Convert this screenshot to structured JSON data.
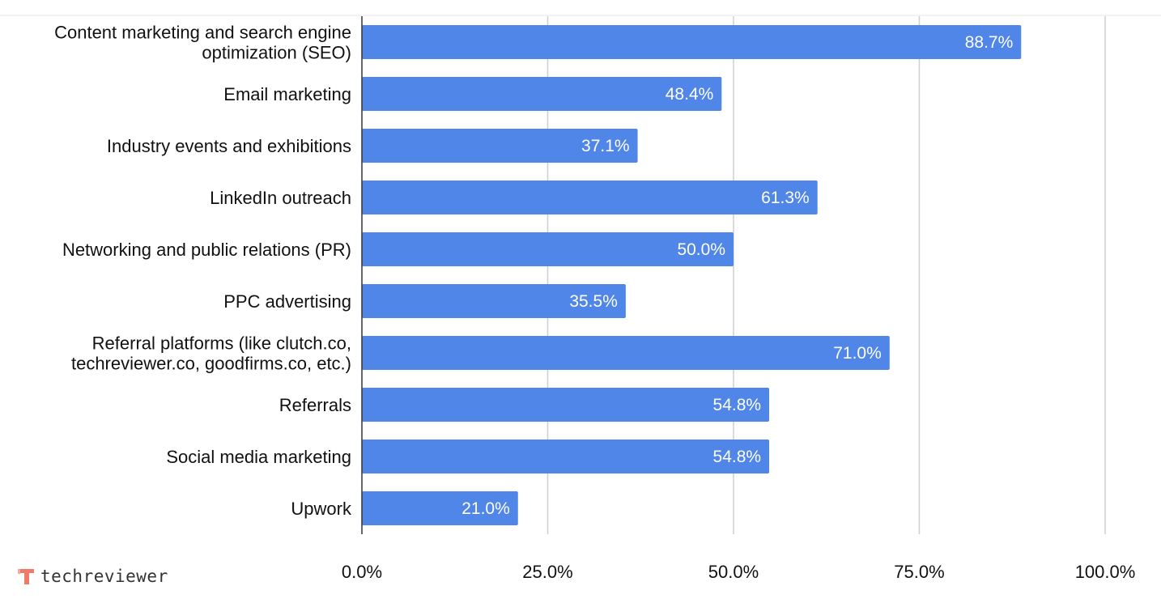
{
  "chart_data": {
    "type": "bar",
    "orientation": "horizontal",
    "categories": [
      [
        "Content marketing and search engine",
        "optimization (SEO)"
      ],
      [
        "Email marketing"
      ],
      [
        "Industry events and exhibitions"
      ],
      [
        "LinkedIn outreach"
      ],
      [
        "Networking and public relations (PR)"
      ],
      [
        "PPC advertising"
      ],
      [
        "Referral platforms (like clutch.co,",
        "techreviewer.co, goodfirms.co, etc.)"
      ],
      [
        "Referrals"
      ],
      [
        "Social media marketing"
      ],
      [
        "Upwork"
      ]
    ],
    "values": [
      88.7,
      48.4,
      37.1,
      61.3,
      50.0,
      35.5,
      71.0,
      54.8,
      54.8,
      21.0
    ],
    "data_labels": [
      "88.7%",
      "48.4%",
      "37.1%",
      "61.3%",
      "50.0%",
      "35.5%",
      "71.0%",
      "54.8%",
      "54.8%",
      "21.0%"
    ],
    "x_ticks": [
      0,
      25,
      50,
      75,
      100
    ],
    "x_tick_labels": [
      "0.0%",
      "25.0%",
      "50.0%",
      "75.0%",
      "100.0%"
    ],
    "xlim": [
      0,
      100
    ],
    "grid": true,
    "bar_color": "#5086e8",
    "title": "",
    "xlabel": "",
    "ylabel": ""
  },
  "brand": {
    "name": "techreviewer",
    "icon": "techreviewer-logo-icon",
    "color": "#f07a6a"
  }
}
